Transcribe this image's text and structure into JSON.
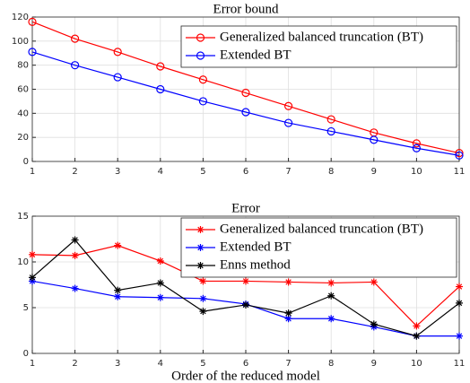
{
  "chart_data": [
    {
      "type": "line",
      "title": "Error bound",
      "marker": "circle",
      "x": [
        1,
        2,
        3,
        4,
        5,
        6,
        7,
        8,
        9,
        10,
        11
      ],
      "series": [
        {
          "name": "Generalized balanced truncation (BT)",
          "color": "#ff0000",
          "values": [
            116,
            102,
            91,
            79,
            68,
            57,
            46,
            35,
            24,
            15,
            7
          ]
        },
        {
          "name": "Extended BT",
          "color": "#0000ff",
          "values": [
            91,
            80,
            70,
            60,
            50,
            41,
            32,
            25,
            18,
            11,
            5
          ]
        }
      ],
      "xlim": [
        1,
        11
      ],
      "xticks": [
        1,
        2,
        3,
        4,
        5,
        6,
        7,
        8,
        9,
        10,
        11
      ],
      "ylim": [
        0,
        120
      ],
      "yticks": [
        0,
        20,
        40,
        60,
        80,
        100,
        120
      ],
      "grid": true,
      "legend": "upper right"
    },
    {
      "type": "line",
      "title": "Error",
      "marker": "star",
      "xlabel": "Order of the reduced model",
      "x": [
        1,
        2,
        3,
        4,
        5,
        6,
        7,
        8,
        9,
        10,
        11
      ],
      "series": [
        {
          "name": "Generalized balanced truncation (BT)",
          "color": "#ff0000",
          "values": [
            10.8,
            10.7,
            11.8,
            10.1,
            7.9,
            7.9,
            7.8,
            7.7,
            7.8,
            3.0,
            7.3
          ]
        },
        {
          "name": "Extended BT",
          "color": "#0000ff",
          "values": [
            7.9,
            7.1,
            6.2,
            6.1,
            6.0,
            5.4,
            3.8,
            3.8,
            2.9,
            1.9,
            1.9
          ]
        },
        {
          "name": "Enns method",
          "color": "#000000",
          "values": [
            8.3,
            12.4,
            6.9,
            7.7,
            4.6,
            5.3,
            4.4,
            6.3,
            3.2,
            1.9,
            5.5
          ]
        }
      ],
      "xlim": [
        1,
        11
      ],
      "xticks": [
        1,
        2,
        3,
        4,
        5,
        6,
        7,
        8,
        9,
        10,
        11
      ],
      "ylim": [
        0,
        15
      ],
      "yticks": [
        0,
        5,
        10,
        15
      ],
      "grid": true,
      "legend": "upper right"
    }
  ]
}
